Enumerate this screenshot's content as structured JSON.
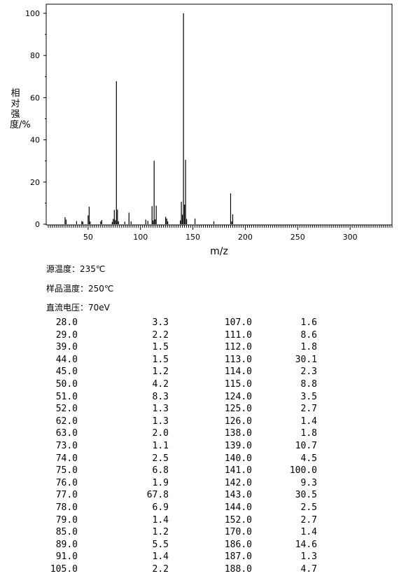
{
  "chart_data": {
    "type": "bar",
    "xlabel": "m/z",
    "ylabel": "相对强度/%",
    "xlim": [
      10,
      340
    ],
    "ylim": [
      0,
      100
    ],
    "xticks": [
      50,
      100,
      150,
      200,
      250,
      300
    ],
    "yticks": [
      0,
      20,
      40,
      60,
      80,
      100
    ],
    "x": [
      28,
      29,
      39,
      44,
      45,
      50,
      51,
      52,
      62,
      63,
      73,
      74,
      75,
      76,
      77,
      78,
      79,
      85,
      89,
      91,
      105,
      107,
      111,
      112,
      113,
      114,
      115,
      124,
      125,
      126,
      138,
      139,
      140,
      141,
      142,
      143,
      144,
      152,
      170,
      186,
      187,
      188
    ],
    "values": [
      3.3,
      2.2,
      1.5,
      1.5,
      1.2,
      4.2,
      8.3,
      1.3,
      1.3,
      2.0,
      1.1,
      2.5,
      6.8,
      1.9,
      67.8,
      6.9,
      1.4,
      1.2,
      5.5,
      1.4,
      2.2,
      1.6,
      8.6,
      1.8,
      30.1,
      2.3,
      8.8,
      3.5,
      2.7,
      1.4,
      1.8,
      10.7,
      4.5,
      100.0,
      9.3,
      30.5,
      2.5,
      2.7,
      1.4,
      14.6,
      1.3,
      4.7
    ]
  },
  "conditions": {
    "source_temp": "源温度：235℃",
    "sample_temp": "样品温度：250℃",
    "voltage": "直流电压：70eV"
  },
  "peak_table": {
    "left": [
      [
        "28.0",
        "3.3"
      ],
      [
        "29.0",
        "2.2"
      ],
      [
        "39.0",
        "1.5"
      ],
      [
        "44.0",
        "1.5"
      ],
      [
        "45.0",
        "1.2"
      ],
      [
        "50.0",
        "4.2"
      ],
      [
        "51.0",
        "8.3"
      ],
      [
        "52.0",
        "1.3"
      ],
      [
        "62.0",
        "1.3"
      ],
      [
        "63.0",
        "2.0"
      ],
      [
        "73.0",
        "1.1"
      ],
      [
        "74.0",
        "2.5"
      ],
      [
        "75.0",
        "6.8"
      ],
      [
        "76.0",
        "1.9"
      ],
      [
        "77.0",
        "67.8"
      ],
      [
        "78.0",
        "6.9"
      ],
      [
        "79.0",
        "1.4"
      ],
      [
        "85.0",
        "1.2"
      ],
      [
        "89.0",
        "5.5"
      ],
      [
        "91.0",
        "1.4"
      ],
      [
        "105.0",
        "2.2"
      ]
    ],
    "right": [
      [
        "107.0",
        "1.6"
      ],
      [
        "111.0",
        "8.6"
      ],
      [
        "112.0",
        "1.8"
      ],
      [
        "113.0",
        "30.1"
      ],
      [
        "114.0",
        "2.3"
      ],
      [
        "115.0",
        "8.8"
      ],
      [
        "124.0",
        "3.5"
      ],
      [
        "125.0",
        "2.7"
      ],
      [
        "126.0",
        "1.4"
      ],
      [
        "138.0",
        "1.8"
      ],
      [
        "139.0",
        "10.7"
      ],
      [
        "140.0",
        "4.5"
      ],
      [
        "141.0",
        "100.0"
      ],
      [
        "142.0",
        "9.3"
      ],
      [
        "143.0",
        "30.5"
      ],
      [
        "144.0",
        "2.5"
      ],
      [
        "152.0",
        "2.7"
      ],
      [
        "170.0",
        "1.4"
      ],
      [
        "186.0",
        "14.6"
      ],
      [
        "187.0",
        "1.3"
      ],
      [
        "188.0",
        "4.7"
      ]
    ]
  }
}
